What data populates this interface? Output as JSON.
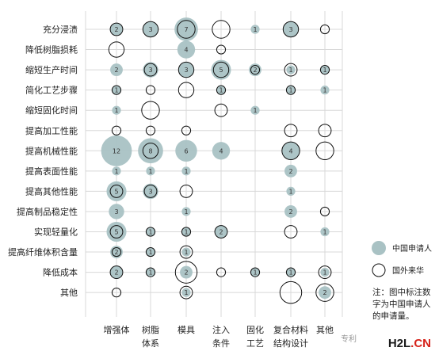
{
  "colors": {
    "applicant": "#a9c2c4",
    "foreign": "#ffffff",
    "stroke": "#111111",
    "grid": "#d8d8d8"
  },
  "chart_data": {
    "type": "bubble",
    "title": "",
    "rows": [
      "充分浸渍",
      "降低树脂损耗",
      "缩短生产时间",
      "简化工艺步骤",
      "缩短固化时间",
      "提高加工性能",
      "提高机械性能",
      "提高表面性能",
      "提高其他性能",
      "提高制品稳定性",
      "实现轻量化",
      "提高纤维体积含量",
      "降低成本",
      "其他"
    ],
    "cols": [
      "增强体",
      "树脂\n体系",
      "模具",
      "注入\n条件",
      "固化\n工艺",
      "复合材料\n结构设计",
      "其他"
    ],
    "domestic": [
      [
        2,
        3,
        7,
        0,
        1,
        3,
        0
      ],
      [
        0,
        0,
        4,
        0,
        0,
        0,
        0
      ],
      [
        2,
        3,
        3,
        5,
        2,
        1,
        1
      ],
      [
        1,
        0,
        0,
        1,
        0,
        1,
        1
      ],
      [
        1,
        0,
        0,
        0,
        1,
        0,
        0
      ],
      [
        0,
        0,
        0,
        0,
        0,
        0,
        0
      ],
      [
        12,
        8,
        6,
        4,
        0,
        4,
        0
      ],
      [
        1,
        1,
        1,
        0,
        0,
        2,
        0
      ],
      [
        5,
        3,
        0,
        0,
        0,
        1,
        0
      ],
      [
        3,
        0,
        1,
        0,
        0,
        2,
        0
      ],
      [
        5,
        1,
        1,
        2,
        0,
        0,
        1
      ],
      [
        2,
        1,
        1,
        0,
        0,
        0,
        0
      ],
      [
        2,
        1,
        2,
        0,
        1,
        1,
        1
      ],
      [
        0,
        0,
        1,
        0,
        0,
        0,
        2
      ]
    ],
    "foreign": [
      [
        2,
        3,
        4,
        4,
        0,
        3,
        1
      ],
      [
        3,
        0,
        0,
        1,
        0,
        0,
        0
      ],
      [
        0,
        2,
        3,
        3,
        1,
        2,
        1
      ],
      [
        1,
        1,
        3,
        1,
        0,
        1,
        0
      ],
      [
        0,
        4,
        0,
        2,
        0,
        0,
        0
      ],
      [
        1,
        1,
        1,
        0,
        0,
        2,
        2
      ],
      [
        0,
        3,
        0,
        0,
        0,
        4,
        4
      ],
      [
        0,
        0,
        0,
        0,
        0,
        0,
        0
      ],
      [
        2,
        2,
        2,
        0,
        0,
        0,
        0
      ],
      [
        0,
        0,
        0,
        0,
        0,
        0,
        1
      ],
      [
        2,
        1,
        1,
        2,
        0,
        2,
        0
      ],
      [
        1,
        1,
        2,
        0,
        0,
        0,
        0
      ],
      [
        2,
        1,
        6,
        1,
        1,
        1,
        2
      ],
      [
        1,
        0,
        2,
        0,
        0,
        6,
        4
      ]
    ],
    "legend": [
      {
        "key": "domestic",
        "label": "中国申请人"
      },
      {
        "key": "foreign",
        "label": "国外来华"
      }
    ],
    "legend_position": "right"
  },
  "note": "注：图中标注数字为中国申请人的申请量。",
  "watermark": {
    "text": "专利",
    "brand_h2l": "H2L",
    "brand_rest": ".CN"
  }
}
